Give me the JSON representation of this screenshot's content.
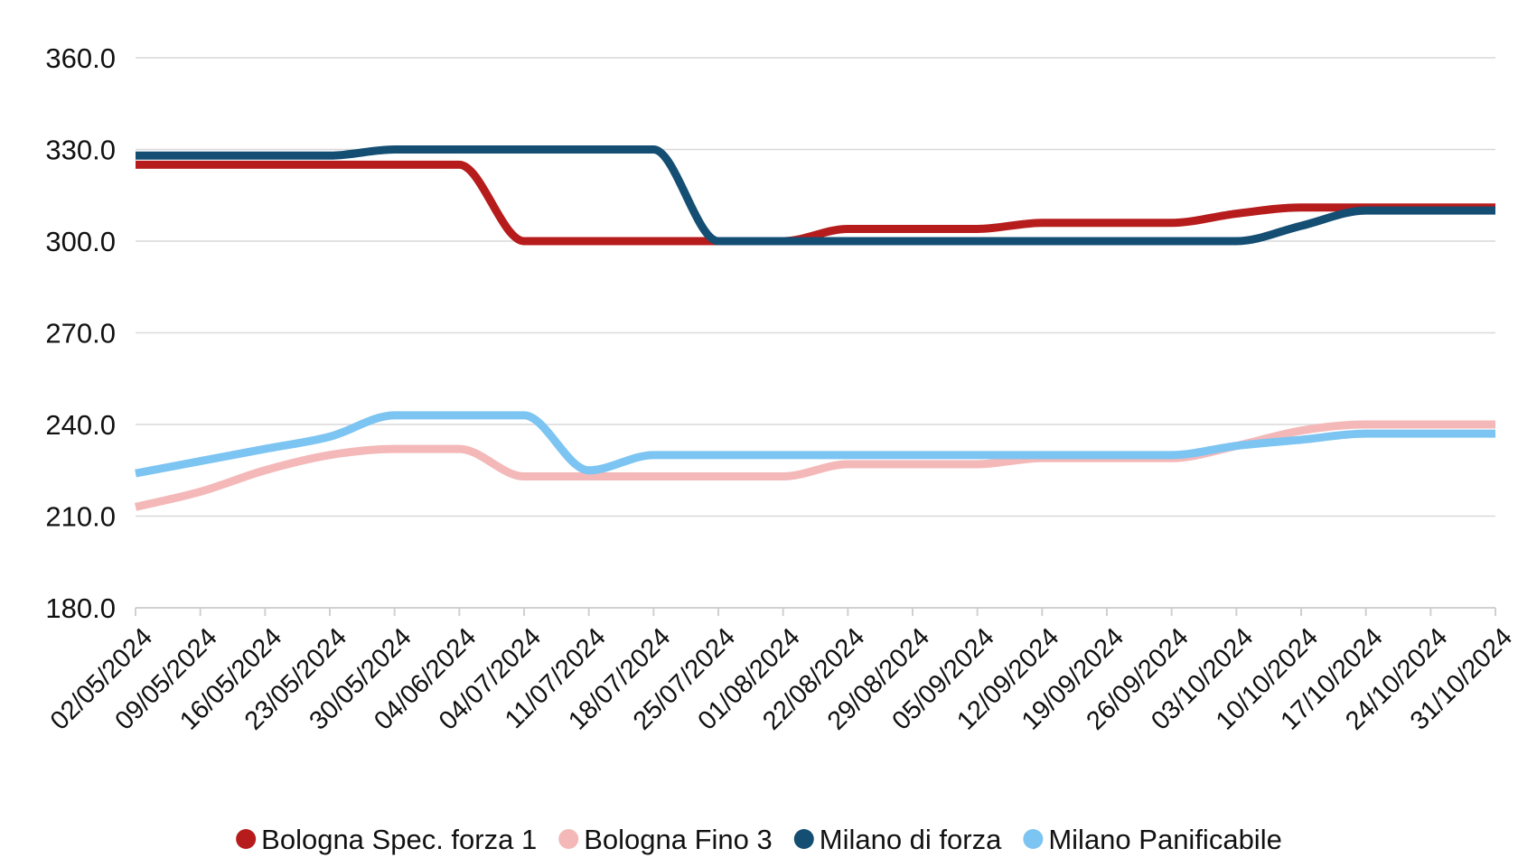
{
  "chart_data": {
    "type": "line",
    "title": "",
    "xlabel": "",
    "ylabel": "",
    "ylim": [
      180,
      360
    ],
    "yticks": [
      "180.0",
      "210.0",
      "240.0",
      "270.0",
      "300.0",
      "330.0",
      "360.0"
    ],
    "categories": [
      "02/05/2024",
      "09/05/2024",
      "16/05/2024",
      "23/05/2024",
      "30/05/2024",
      "04/06/2024",
      "04/07/2024",
      "11/07/2024",
      "18/07/2024",
      "25/07/2024",
      "01/08/2024",
      "22/08/2024",
      "29/08/2024",
      "05/09/2024",
      "12/09/2024",
      "19/09/2024",
      "26/09/2024",
      "03/10/2024",
      "10/10/2024",
      "17/10/2024",
      "24/10/2024",
      "31/10/2024"
    ],
    "grid": true,
    "legend_position": "bottom",
    "series": [
      {
        "name": "Bologna Spec. forza 1",
        "color": "#b71c1c",
        "values": [
          325,
          325,
          325,
          325,
          325,
          325,
          300,
          300,
          300,
          300,
          300,
          304,
          304,
          304,
          306,
          306,
          306,
          309,
          311,
          311,
          311,
          311
        ]
      },
      {
        "name": "Bologna Fino 3",
        "color": "#f4b8b8",
        "values": [
          213,
          218,
          225,
          230,
          232,
          232,
          223,
          223,
          223,
          223,
          223,
          227,
          227,
          227,
          229,
          229,
          229,
          233,
          238,
          240,
          240,
          240
        ]
      },
      {
        "name": "Milano di forza",
        "color": "#144e73",
        "values": [
          328,
          328,
          328,
          328,
          330,
          330,
          330,
          330,
          330,
          300,
          300,
          300,
          300,
          300,
          300,
          300,
          300,
          300,
          305,
          310,
          310,
          310
        ]
      },
      {
        "name": "Milano Panificabile",
        "color": "#7cc4f2",
        "values": [
          224,
          228,
          232,
          236,
          243,
          243,
          243,
          225,
          230,
          230,
          230,
          230,
          230,
          230,
          230,
          230,
          230,
          233,
          235,
          237,
          237,
          237
        ]
      }
    ]
  }
}
